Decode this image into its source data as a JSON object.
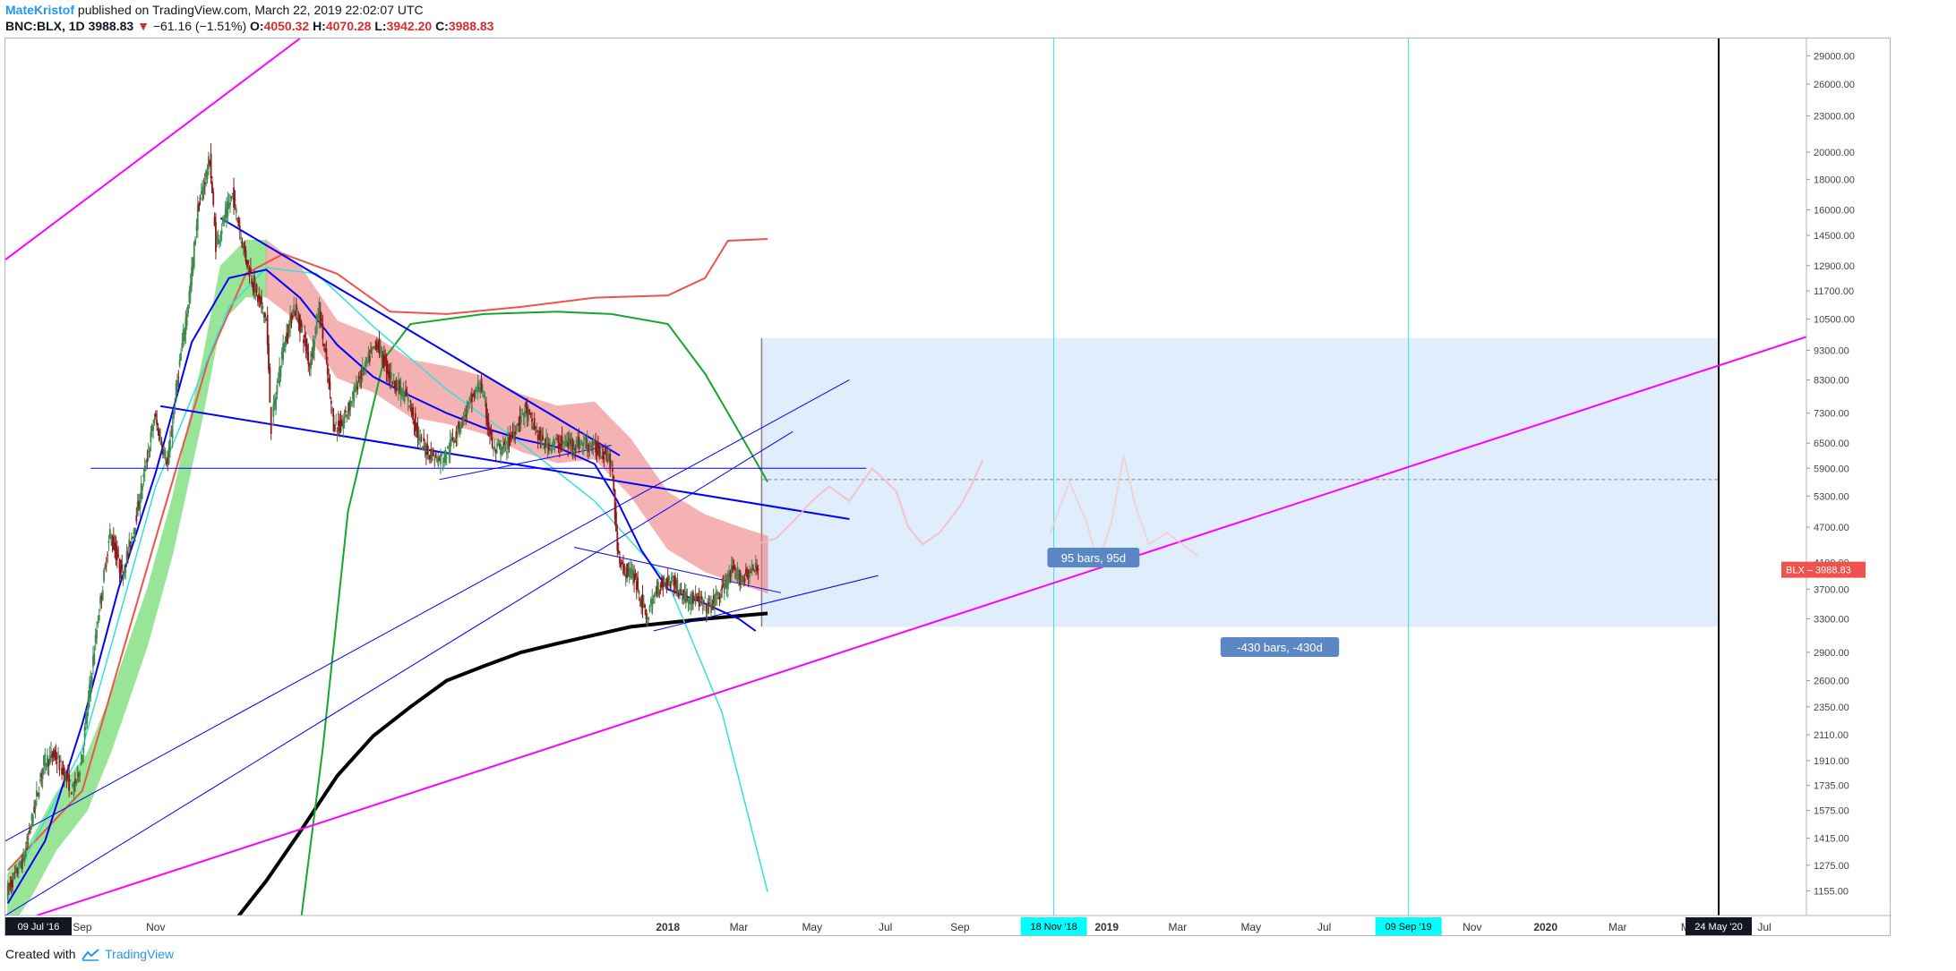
{
  "header": {
    "author": "MateKristof",
    "published_text": "published on TradingView.com, March 22, 2019 22:02:07 UTC",
    "symbol": "BNC:BLX, 1D",
    "price": "3988.83",
    "change_arrow": "▼",
    "change": "−61.16 (−1.51%)",
    "open_label": "O:",
    "open": "4050.32",
    "high_label": "H:",
    "high": "4070.28",
    "low_label": "L:",
    "low": "3942.20",
    "close_label": "C:",
    "close": "3988.83"
  },
  "footer": {
    "created_with": "Created with",
    "brand": "TradingView"
  },
  "colors": {
    "up": "#3c8a4f",
    "down": "#8b1a1a",
    "magenta": "#ff00ff",
    "blue": "#0000ff",
    "cyan": "#33e0e0",
    "green": "#17a52c",
    "red": "#f0524a",
    "black": "#000000",
    "cloud_green": "#54d454",
    "cloud_red": "#f08080",
    "box": "#cfe4fb",
    "label_bg": "#5b88c4"
  },
  "chart_data": {
    "type": "candlestick",
    "symbol": "BNC:BLX",
    "interval": "1D",
    "y_scale": "log",
    "ylim": [
      1050,
      31000
    ],
    "xlim": [
      "2016-06-29",
      "2020-08-05"
    ],
    "last_price": 3988.83,
    "last_price_label": "BLX",
    "last_price_tag": "3988.83",
    "y_ticks": [
      "29000.00",
      "26000.00",
      "23000.00",
      "20000.00",
      "18000.00",
      "16000.00",
      "14500.00",
      "12900.00",
      "11700.00",
      "10500.00",
      "9300.00",
      "8300.00",
      "7300.00",
      "6500.00",
      "5900.00",
      "5300.00",
      "4700.00",
      "4100.00",
      "3700.00",
      "3300.00",
      "2900.00",
      "2600.00",
      "2350.00",
      "2110.00",
      "1910.00",
      "1735.00",
      "1575.00",
      "1415.00",
      "1275.00",
      "1155.00"
    ],
    "x_ticks": [
      {
        "label": "Jul",
        "date": "2016-08-01"
      },
      {
        "label": "Sep",
        "date": "2016-09-01"
      },
      {
        "label": "Nov",
        "date": "2016-11-01"
      },
      {
        "label": "2018",
        "date": "2018-01-01",
        "bold": true
      },
      {
        "label": "Mar",
        "date": "2018-03-01"
      },
      {
        "label": "May",
        "date": "2018-05-01"
      },
      {
        "label": "Jul",
        "date": "2018-07-01"
      },
      {
        "label": "Sep",
        "date": "2018-09-01"
      },
      {
        "label": "N",
        "date": "2018-11-01"
      },
      {
        "label": "2019",
        "date": "2019-01-01",
        "bold": true
      },
      {
        "label": "Mar",
        "date": "2019-03-01"
      },
      {
        "label": "May",
        "date": "2019-05-01"
      },
      {
        "label": "Jul",
        "date": "2019-07-01"
      },
      {
        "label": "Sep",
        "date": "2019-09-01"
      },
      {
        "label": "Nov",
        "date": "2019-11-01"
      },
      {
        "label": "2020",
        "date": "2020-01-01",
        "bold": true
      },
      {
        "label": "Mar",
        "date": "2020-03-01"
      },
      {
        "label": "May",
        "date": "2020-05-01"
      },
      {
        "label": "Jul",
        "date": "2020-07-01"
      }
    ],
    "date_tags": [
      {
        "label": "09 Jul '16",
        "date": "2016-07-09",
        "style": "dark"
      },
      {
        "label": "18 Nov '18",
        "date": "2018-11-18",
        "style": "cyan"
      },
      {
        "label": "09 Sep '19",
        "date": "2019-09-09",
        "style": "cyan"
      },
      {
        "label": "24 May '20",
        "date": "2020-05-24",
        "style": "dark"
      }
    ],
    "price_path": [
      [
        "2016-07-01",
        1150
      ],
      [
        "2016-07-15",
        1300
      ],
      [
        "2016-08-01",
        1900
      ],
      [
        "2016-08-10",
        1950
      ],
      [
        "2016-08-25",
        1700
      ],
      [
        "2016-09-01",
        1900
      ],
      [
        "2016-09-15",
        3300
      ],
      [
        "2016-09-25",
        4600
      ],
      [
        "2016-10-05",
        3900
      ],
      [
        "2016-10-15",
        4700
      ],
      [
        "2016-10-25",
        6000
      ],
      [
        "2016-11-01",
        7200
      ],
      [
        "2016-11-05",
        6700
      ],
      [
        "2016-11-12",
        6000
      ],
      [
        "2016-11-20",
        8300
      ],
      [
        "2016-12-01",
        12000
      ],
      [
        "2016-12-07",
        16000
      ],
      [
        "2016-12-17",
        19500
      ],
      [
        "2016-12-22",
        14000
      ],
      [
        "2017-01-05",
        17000
      ],
      [
        "2017-01-15",
        13500
      ],
      [
        "2017-01-25",
        11500
      ],
      [
        "2017-02-02",
        10500
      ],
      [
        "2017-02-06",
        6900
      ],
      [
        "2017-02-15",
        9200
      ],
      [
        "2017-02-25",
        11000
      ],
      [
        "2017-03-05",
        9800
      ],
      [
        "2017-03-10",
        8800
      ],
      [
        "2017-03-18",
        11000
      ],
      [
        "2017-03-30",
        7000
      ],
      [
        "2017-04-05",
        6900
      ],
      [
        "2017-04-20",
        8300
      ],
      [
        "2017-05-05",
        9600
      ],
      [
        "2017-05-15",
        8500
      ],
      [
        "2017-06-01",
        7600
      ],
      [
        "2017-06-10",
        6500
      ],
      [
        "2017-06-25",
        6100
      ],
      [
        "2017-07-01",
        6200
      ],
      [
        "2017-07-20",
        7500
      ],
      [
        "2017-07-30",
        8200
      ],
      [
        "2017-08-10",
        6300
      ],
      [
        "2017-08-20",
        6400
      ],
      [
        "2017-09-05",
        7400
      ],
      [
        "2017-09-20",
        6500
      ],
      [
        "2017-10-05",
        6500
      ],
      [
        "2017-10-25",
        6500
      ],
      [
        "2017-11-14",
        6200
      ],
      [
        "2017-11-18",
        5500
      ],
      [
        "2017-11-20",
        4500
      ],
      [
        "2017-11-25",
        4000
      ],
      [
        "2017-12-05",
        3900
      ],
      [
        "2017-12-15",
        3300
      ],
      [
        "2017-12-25",
        3750
      ],
      [
        "2018-01-05",
        3850
      ],
      [
        "2018-01-15",
        3600
      ],
      [
        "2018-01-25",
        3550
      ],
      [
        "2018-02-05",
        3450
      ],
      [
        "2018-02-15",
        3650
      ],
      [
        "2018-02-24",
        3950
      ],
      [
        "2018-03-05",
        3850
      ],
      [
        "2018-03-10",
        3950
      ],
      [
        "2018-03-18",
        4000
      ]
    ],
    "ghost_path": [
      [
        "2018-03-15",
        4400
      ],
      [
        "2018-04-01",
        4500
      ],
      [
        "2018-04-15",
        4800
      ],
      [
        "2018-05-01",
        5200
      ],
      [
        "2018-05-15",
        5500
      ],
      [
        "2018-06-01",
        5200
      ],
      [
        "2018-06-20",
        5900
      ],
      [
        "2018-07-10",
        5400
      ],
      [
        "2018-07-20",
        4700
      ],
      [
        "2018-08-01",
        4400
      ],
      [
        "2018-08-15",
        4600
      ],
      [
        "2018-09-01",
        5100
      ],
      [
        "2018-09-10",
        5500
      ],
      [
        "2018-09-20",
        6100
      ]
    ],
    "ghost_early": [
      [
        "2018-11-15",
        4600
      ],
      [
        "2018-12-01",
        5600
      ],
      [
        "2018-12-15",
        4800
      ],
      [
        "2018-12-25",
        4100
      ],
      [
        "2019-01-05",
        4800
      ],
      [
        "2019-01-15",
        6200
      ],
      [
        "2019-01-25",
        5100
      ],
      [
        "2019-02-05",
        4400
      ],
      [
        "2019-02-20",
        4600
      ],
      [
        "2019-03-05",
        4400
      ],
      [
        "2019-03-18",
        4200
      ]
    ],
    "ichimoku_cloud_green": [
      [
        "2016-07-01",
        1100
      ],
      [
        "2016-07-20",
        1250
      ],
      [
        "2016-08-10",
        1500
      ],
      [
        "2016-09-05",
        1750
      ],
      [
        "2016-09-25",
        2200
      ],
      [
        "2016-10-25",
        3300
      ],
      [
        "2016-11-15",
        4700
      ],
      [
        "2016-12-10",
        8000
      ],
      [
        "2016-12-25",
        11500
      ],
      [
        "2017-01-15",
        12700
      ],
      [
        "2017-02-01",
        12700
      ]
    ],
    "ichimoku_cloud_red": [
      [
        "2017-02-01",
        12700
      ],
      [
        "2017-03-01",
        11500
      ],
      [
        "2017-04-01",
        9300
      ],
      [
        "2017-05-01",
        8800
      ],
      [
        "2017-06-01",
        8000
      ],
      [
        "2017-07-01",
        7800
      ],
      [
        "2017-08-01",
        7500
      ],
      [
        "2017-09-01",
        7000
      ],
      [
        "2017-10-01",
        6700
      ],
      [
        "2017-11-01",
        6800
      ],
      [
        "2017-12-01",
        5900
      ],
      [
        "2018-01-01",
        4800
      ],
      [
        "2018-02-01",
        4400
      ],
      [
        "2018-03-01",
        4200
      ],
      [
        "2018-03-25",
        4050
      ]
    ],
    "ma_blue": [
      [
        "2016-07-01",
        1100
      ],
      [
        "2016-08-01",
        1400
      ],
      [
        "2016-09-01",
        2200
      ],
      [
        "2016-10-01",
        3700
      ],
      [
        "2016-11-01",
        5800
      ],
      [
        "2016-12-01",
        9600
      ],
      [
        "2017-01-01",
        12300
      ],
      [
        "2017-02-01",
        12700
      ],
      [
        "2017-03-01",
        11400
      ],
      [
        "2017-04-01",
        9500
      ],
      [
        "2017-05-01",
        8400
      ],
      [
        "2017-06-01",
        7800
      ],
      [
        "2017-07-01",
        7300
      ],
      [
        "2017-08-01",
        6900
      ],
      [
        "2017-09-01",
        6600
      ],
      [
        "2017-10-01",
        6400
      ],
      [
        "2017-11-01",
        6000
      ],
      [
        "2017-11-20",
        5200
      ],
      [
        "2017-12-10",
        4300
      ],
      [
        "2018-01-01",
        3700
      ],
      [
        "2018-02-01",
        3500
      ],
      [
        "2018-03-01",
        3300
      ],
      [
        "2018-03-15",
        3150
      ]
    ],
    "ma_cyan": [
      [
        "2016-07-01",
        1150
      ],
      [
        "2016-09-01",
        2000
      ],
      [
        "2016-11-01",
        5500
      ],
      [
        "2017-01-01",
        11000
      ],
      [
        "2017-02-01",
        12800
      ],
      [
        "2017-03-15",
        12500
      ],
      [
        "2017-05-01",
        10200
      ],
      [
        "2017-07-01",
        8000
      ],
      [
        "2017-09-01",
        6500
      ],
      [
        "2017-11-01",
        5200
      ],
      [
        "2018-01-01",
        3800
      ],
      [
        "2018-02-15",
        2300
      ],
      [
        "2018-03-25",
        1150
      ]
    ],
    "ma_red": [
      [
        "2016-07-01",
        1250
      ],
      [
        "2016-09-01",
        1700
      ],
      [
        "2016-11-01",
        4500
      ],
      [
        "2016-12-15",
        9000
      ],
      [
        "2017-01-15",
        12500
      ],
      [
        "2017-02-15",
        13500
      ],
      [
        "2017-04-01",
        12500
      ],
      [
        "2017-05-15",
        10800
      ],
      [
        "2017-07-01",
        10700
      ],
      [
        "2017-09-01",
        11000
      ],
      [
        "2017-11-01",
        11400
      ],
      [
        "2018-01-01",
        11500
      ],
      [
        "2018-02-01",
        12300
      ],
      [
        "2018-02-20",
        14200
      ],
      [
        "2018-03-25",
        14300
      ]
    ],
    "ma_green": [
      [
        "2017-03-01",
        1000
      ],
      [
        "2017-03-20",
        2000
      ],
      [
        "2017-04-10",
        5000
      ],
      [
        "2017-05-10",
        9000
      ],
      [
        "2017-06-01",
        10300
      ],
      [
        "2017-08-01",
        10700
      ],
      [
        "2017-10-01",
        10800
      ],
      [
        "2017-11-15",
        10700
      ],
      [
        "2018-01-01",
        10300
      ],
      [
        "2018-02-01",
        8500
      ],
      [
        "2018-03-01",
        6800
      ],
      [
        "2018-03-25",
        5600
      ]
    ],
    "ma_black": [
      [
        "2017-01-01",
        1000
      ],
      [
        "2017-02-01",
        1200
      ],
      [
        "2017-03-01",
        1450
      ],
      [
        "2017-04-01",
        1800
      ],
      [
        "2017-05-01",
        2100
      ],
      [
        "2017-06-01",
        2350
      ],
      [
        "2017-07-01",
        2600
      ],
      [
        "2017-08-01",
        2750
      ],
      [
        "2017-09-01",
        2900
      ],
      [
        "2017-10-01",
        3000
      ],
      [
        "2017-11-01",
        3100
      ],
      [
        "2017-12-01",
        3200
      ],
      [
        "2018-01-01",
        3250
      ],
      [
        "2018-02-01",
        3300
      ],
      [
        "2018-03-25",
        3370
      ]
    ],
    "trendlines": [
      {
        "color": "#ff00ff",
        "width": 2,
        "from": [
          "2016-06-29",
          13200
        ],
        "to": [
          "2017-03-01",
          31000
        ]
      },
      {
        "color": "#ff00ff",
        "width": 2,
        "from": [
          "2016-07-25",
          1050
        ],
        "to": [
          "2020-08-05",
          9800
        ]
      },
      {
        "color": "#0000ff",
        "width": 2,
        "from": [
          "2016-11-05",
          7500
        ],
        "to": [
          "2018-06-01",
          4850
        ]
      },
      {
        "color": "#0000ff",
        "width": 2,
        "from": [
          "2016-12-25",
          15500
        ],
        "to": [
          "2017-11-22",
          6200
        ]
      },
      {
        "color": "#0000ff",
        "width": 1,
        "from": [
          "2016-09-08",
          5900
        ],
        "to": [
          "2018-06-15",
          5900
        ]
      },
      {
        "color": "#0000ff",
        "width": 1,
        "from": [
          "2016-06-29",
          1400
        ],
        "to": [
          "2018-06-01",
          8300
        ]
      },
      {
        "color": "#0000ff",
        "width": 1,
        "from": [
          "2016-06-29",
          1050
        ],
        "to": [
          "2018-04-15",
          6800
        ]
      },
      {
        "color": "#0000ff",
        "width": 1,
        "from": [
          "2017-10-15",
          4350
        ],
        "to": [
          "2018-04-05",
          3650
        ]
      },
      {
        "color": "#0000ff",
        "width": 1,
        "from": [
          "2017-12-20",
          3150
        ],
        "to": [
          "2018-06-25",
          3900
        ]
      },
      {
        "color": "#0000ff",
        "width": 1,
        "from": [
          "2017-06-25",
          5650
        ],
        "to": [
          "2017-11-15",
          6450
        ]
      }
    ],
    "vlines": [
      {
        "date": "2018-11-18",
        "color": "#33e0e0",
        "width": 1
      },
      {
        "date": "2019-09-09",
        "color": "#33e0e0",
        "width": 1
      },
      {
        "date": "2020-05-24",
        "color": "#000000",
        "width": 2
      }
    ],
    "projection_box": {
      "from": "2018-03-20",
      "to": "2020-05-24",
      "top": 9750,
      "bottom": 3200,
      "level": 5650
    },
    "labels": [
      {
        "text": "95 bars, 95d",
        "date": "2018-12-21",
        "price": 4180
      },
      {
        "text": "-430 bars, -430d",
        "date": "2019-05-25",
        "price": 2960
      }
    ]
  }
}
